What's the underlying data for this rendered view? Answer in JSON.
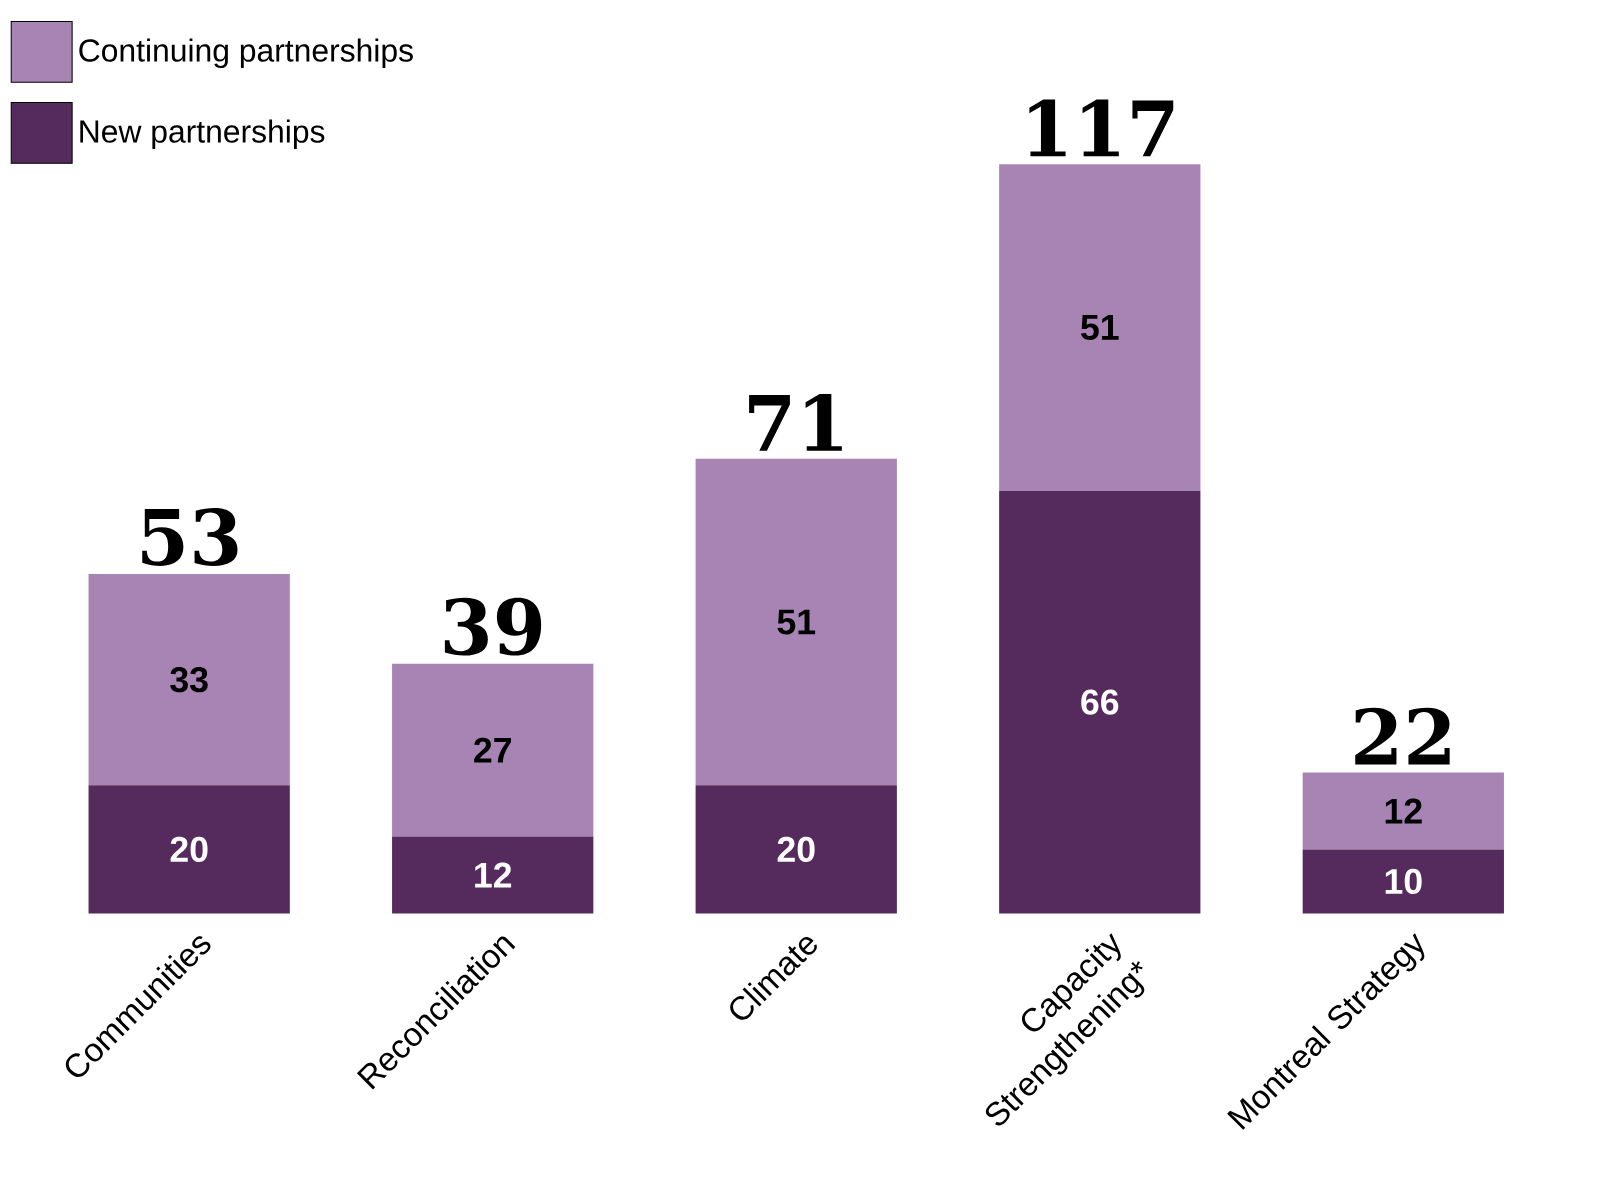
{
  "chart_data": {
    "type": "bar",
    "stacked": true,
    "data_labels": true,
    "legend": "top left",
    "categories": [
      "Communities",
      "Reconciliation",
      "Climate",
      "Capacity Strengthening*",
      "Montreal Strategy"
    ],
    "series": [
      {
        "name": "New partnerships",
        "color": "#552a5c",
        "values": [
          20,
          12,
          20,
          66,
          10
        ]
      },
      {
        "name": "Continuing partnerships",
        "color": "#a784b4",
        "values": [
          33,
          27,
          51,
          51,
          12
        ]
      }
    ],
    "totals": [
      "53",
      "39",
      "71",
      "117",
      "22"
    ]
  }
}
